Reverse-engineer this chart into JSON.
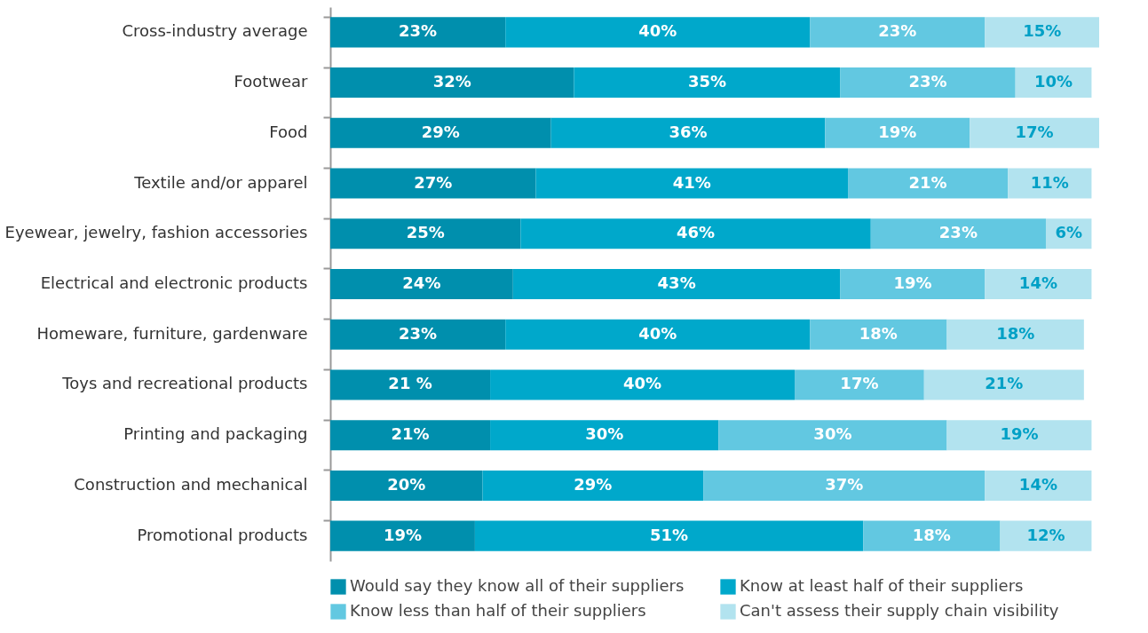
{
  "chart_data": {
    "type": "bar",
    "orientation": "horizontal",
    "stacked": true,
    "legend": "bottom",
    "categories": [
      "Cross-industry average",
      "Footwear",
      "Food",
      "Textile and/or apparel",
      "Eyewear, jewelry, fashion accessories",
      "Electrical and electronic products",
      "Homeware, furniture, gardenware",
      "Toys and recreational products",
      "Printing and packaging",
      "Construction and mechanical",
      "Promotional products"
    ],
    "series": [
      {
        "name": "Would say they know all of their suppliers",
        "color": "#008fad",
        "values": [
          23,
          32,
          29,
          27,
          25,
          24,
          23,
          21,
          21,
          20,
          19
        ],
        "value_labels": [
          "23%",
          "32%",
          "29%",
          "27%",
          "25%",
          "24%",
          "23%",
          "21 %",
          "21%",
          "20%",
          "19%"
        ]
      },
      {
        "name": "Know at least half of their suppliers",
        "color": "#00a8cb",
        "values": [
          40,
          35,
          36,
          41,
          46,
          43,
          40,
          40,
          30,
          29,
          51
        ],
        "value_labels": [
          "40%",
          "35%",
          "36%",
          "41%",
          "46%",
          "43%",
          "40%",
          "40%",
          "30%",
          "29%",
          "51%"
        ]
      },
      {
        "name": "Know less than half of their suppliers",
        "color": "#62c8e1",
        "values": [
          23,
          23,
          19,
          21,
          23,
          19,
          18,
          17,
          30,
          37,
          18
        ],
        "value_labels": [
          "23%",
          "23%",
          "19%",
          "21%",
          "23%",
          "19%",
          "18%",
          "17%",
          "30%",
          "37%",
          "18%"
        ]
      },
      {
        "name": "Can't assess their supply chain visibility",
        "color": "#b2e3ef",
        "values": [
          15,
          10,
          17,
          11,
          6,
          14,
          18,
          21,
          19,
          14,
          12
        ],
        "value_labels": [
          "15%",
          "10%",
          "17%",
          "11%",
          "6%",
          "14%",
          "18%",
          "21%",
          "19%",
          "14%",
          "12%"
        ]
      }
    ]
  }
}
